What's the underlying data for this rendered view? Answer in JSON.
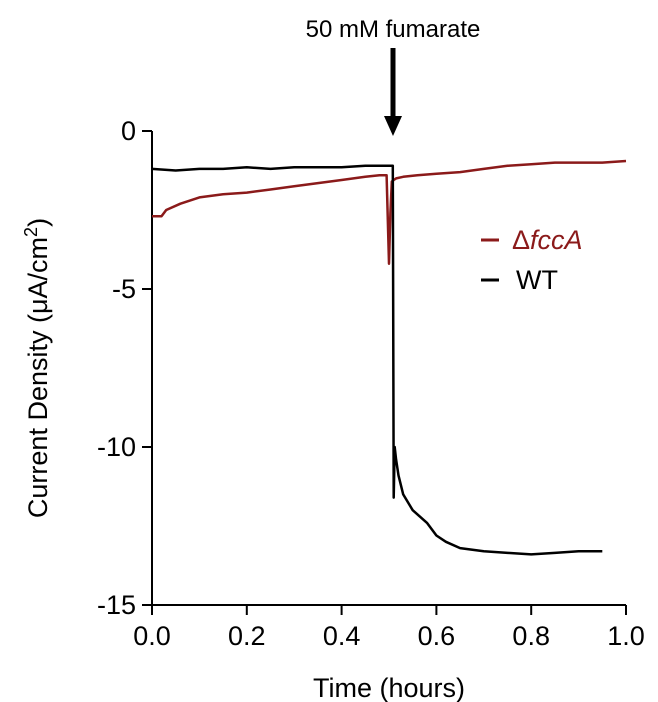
{
  "chart_data": {
    "type": "line",
    "xlabel": "Time (hours)",
    "ylabel_main": "Current Density (",
    "ylabel_mu": "μ",
    "ylabel_unit": "A/cm",
    "ylabel_sup": "2",
    "ylabel_close": ")",
    "xlim": [
      0.0,
      1.0
    ],
    "ylim": [
      -15,
      0
    ],
    "xticks": [
      "0.0",
      "0.2",
      "0.4",
      "0.6",
      "0.8",
      "1.0"
    ],
    "yticks": [
      "-15",
      "-10",
      "-5",
      "0"
    ],
    "annotation": {
      "text": "50 mM fumarate",
      "x": 0.51
    },
    "legend": {
      "position": "right"
    },
    "series": [
      {
        "name_prefix": "Δ",
        "name_italic": "fccA",
        "color": "#8b1a1a",
        "x": [
          0.0,
          0.02,
          0.03,
          0.06,
          0.1,
          0.15,
          0.2,
          0.25,
          0.3,
          0.35,
          0.4,
          0.45,
          0.48,
          0.495,
          0.5,
          0.503,
          0.506,
          0.51,
          0.515,
          0.53,
          0.56,
          0.6,
          0.65,
          0.7,
          0.75,
          0.8,
          0.85,
          0.9,
          0.95,
          1.0
        ],
        "y": [
          -2.7,
          -2.7,
          -2.5,
          -2.3,
          -2.1,
          -2.0,
          -1.95,
          -1.85,
          -1.75,
          -1.65,
          -1.55,
          -1.45,
          -1.4,
          -1.4,
          -4.2,
          -2.6,
          -1.6,
          -1.55,
          -1.5,
          -1.45,
          -1.4,
          -1.35,
          -1.3,
          -1.2,
          -1.1,
          -1.05,
          -1.0,
          -1.0,
          -1.0,
          -0.95
        ]
      },
      {
        "name": "WT",
        "color": "#000000",
        "x": [
          0.0,
          0.05,
          0.1,
          0.15,
          0.2,
          0.25,
          0.3,
          0.35,
          0.4,
          0.45,
          0.5,
          0.508,
          0.51,
          0.512,
          0.515,
          0.52,
          0.53,
          0.55,
          0.58,
          0.6,
          0.62,
          0.65,
          0.7,
          0.75,
          0.8,
          0.85,
          0.9,
          0.95
        ],
        "y": [
          -1.2,
          -1.25,
          -1.2,
          -1.2,
          -1.15,
          -1.2,
          -1.15,
          -1.15,
          -1.15,
          -1.1,
          -1.1,
          -1.1,
          -11.6,
          -10.0,
          -10.4,
          -10.9,
          -11.5,
          -12.0,
          -12.4,
          -12.8,
          -13.0,
          -13.2,
          -13.3,
          -13.35,
          -13.4,
          -13.35,
          -13.3,
          -13.3
        ]
      }
    ]
  }
}
